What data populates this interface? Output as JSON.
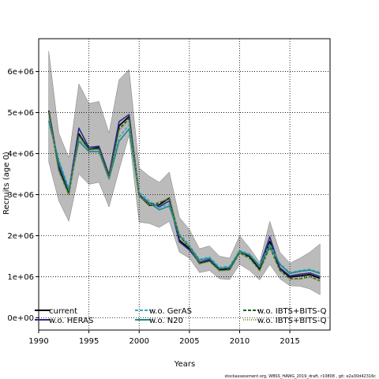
{
  "chart_data": {
    "type": "line",
    "xlabel": "Years",
    "ylabel": "Recruits (age 0)",
    "xlim": [
      1990,
      2019
    ],
    "ylim": [
      -300000,
      6800000
    ],
    "x_ticks": [
      1990,
      1995,
      2000,
      2005,
      2010,
      2015
    ],
    "x_tick_labels": [
      "1990",
      "1995",
      "2000",
      "2005",
      "2010",
      "2015"
    ],
    "y_ticks": [
      0,
      1000000,
      2000000,
      3000000,
      4000000,
      5000000,
      6000000
    ],
    "y_tick_labels": [
      "0e+00",
      "1e+06",
      "2e+06",
      "3e+06",
      "4e+06",
      "5e+06",
      "6e+06"
    ],
    "grid": true,
    "legend_position": "bottom",
    "footer": "stockassessment.org, WBSS_HAWG_2019_draft, r10808 , git: e2a30d42316c",
    "x": [
      1991,
      1992,
      1993,
      1994,
      1995,
      1996,
      1997,
      1998,
      1999,
      2000,
      2001,
      2002,
      2003,
      2004,
      2005,
      2006,
      2007,
      2008,
      2009,
      2010,
      2011,
      2012,
      2013,
      2014,
      2015,
      2016,
      2017,
      2018
    ],
    "band": {
      "lower": [
        3800000,
        2850000,
        2350000,
        3500000,
        3250000,
        3300000,
        2700000,
        3600000,
        4450000,
        2330000,
        2300000,
        2200000,
        2350000,
        1600000,
        1450000,
        1100000,
        1150000,
        950000,
        930000,
        1300000,
        1150000,
        920000,
        1300000,
        950000,
        780000,
        770000,
        700000,
        560000
      ],
      "upper": [
        6500000,
        4500000,
        3900000,
        5700000,
        5220000,
        5270000,
        4500000,
        5800000,
        6050000,
        3650000,
        3450000,
        3300000,
        3550000,
        2450000,
        2150000,
        1680000,
        1750000,
        1500000,
        1450000,
        2000000,
        1700000,
        1350000,
        2350000,
        1600000,
        1330000,
        1450000,
        1600000,
        1800000
      ]
    },
    "series": [
      {
        "name": "current",
        "color": "#000000",
        "dash": "",
        "values": [
          5050000,
          3650000,
          3050000,
          4480000,
          4100000,
          4150000,
          3430000,
          4680000,
          4900000,
          2980000,
          2740000,
          2750000,
          2920000,
          1890000,
          1680000,
          1330000,
          1400000,
          1170000,
          1180000,
          1620000,
          1490000,
          1180000,
          1860000,
          1200000,
          990000,
          1020000,
          1050000,
          960000
        ]
      },
      {
        "name": "w.o. HERAS",
        "color": "#2c2a8c",
        "dash": "",
        "values": [
          5050000,
          3700000,
          3100000,
          4620000,
          4150000,
          4180000,
          3480000,
          4780000,
          4950000,
          3000000,
          2800000,
          2700000,
          2850000,
          1850000,
          1650000,
          1350000,
          1420000,
          1200000,
          1210000,
          1620000,
          1530000,
          1260000,
          1970000,
          1220000,
          1020000,
          1060000,
          1090000,
          1000000
        ]
      },
      {
        "name": "w.o. GerAS",
        "color": "#3aa6c8",
        "dash": "4,2",
        "values": [
          4800000,
          3850000,
          3150000,
          4350000,
          4100000,
          4100000,
          3400000,
          4400000,
          4700000,
          3060000,
          2850000,
          2680000,
          2770000,
          2050000,
          1770000,
          1420000,
          1480000,
          1230000,
          1260000,
          1640000,
          1550000,
          1270000,
          1800000,
          1320000,
          1100000,
          1150000,
          1180000,
          1100000
        ]
      },
      {
        "name": "w.o. N20",
        "color": "#1f8a8a",
        "dash": "",
        "values": [
          4800000,
          3800000,
          3100000,
          4300000,
          4050000,
          4050000,
          3380000,
          4300000,
          4600000,
          2970000,
          2800000,
          2630000,
          2720000,
          2000000,
          1730000,
          1400000,
          1450000,
          1200000,
          1230000,
          1620000,
          1520000,
          1250000,
          1760000,
          1300000,
          1080000,
          1130000,
          1160000,
          1080000
        ]
      },
      {
        "name": "w.o. IBTS+BITS-Q",
        "color": "#1e5a28",
        "dash": "4,2",
        "values": [
          5000000,
          3600000,
          3000000,
          4450000,
          4100000,
          4120000,
          3420000,
          4600000,
          4850000,
          2980000,
          2760000,
          2800000,
          2900000,
          2000000,
          1710000,
          1320000,
          1380000,
          1150000,
          1170000,
          1580000,
          1450000,
          1150000,
          1720000,
          1150000,
          950000,
          950000,
          1000000,
          900000
        ]
      },
      {
        "name": "w.o. IBTS+BITS-Q",
        "color": "#8c9a2c",
        "dash": "1,1.5",
        "values": [
          5000000,
          3550000,
          2980000,
          4400000,
          4080000,
          4100000,
          3400000,
          4550000,
          4800000,
          2960000,
          2740000,
          2820000,
          2930000,
          2030000,
          1720000,
          1310000,
          1360000,
          1140000,
          1160000,
          1560000,
          1440000,
          1140000,
          1700000,
          1140000,
          930000,
          940000,
          990000,
          890000
        ]
      }
    ]
  }
}
